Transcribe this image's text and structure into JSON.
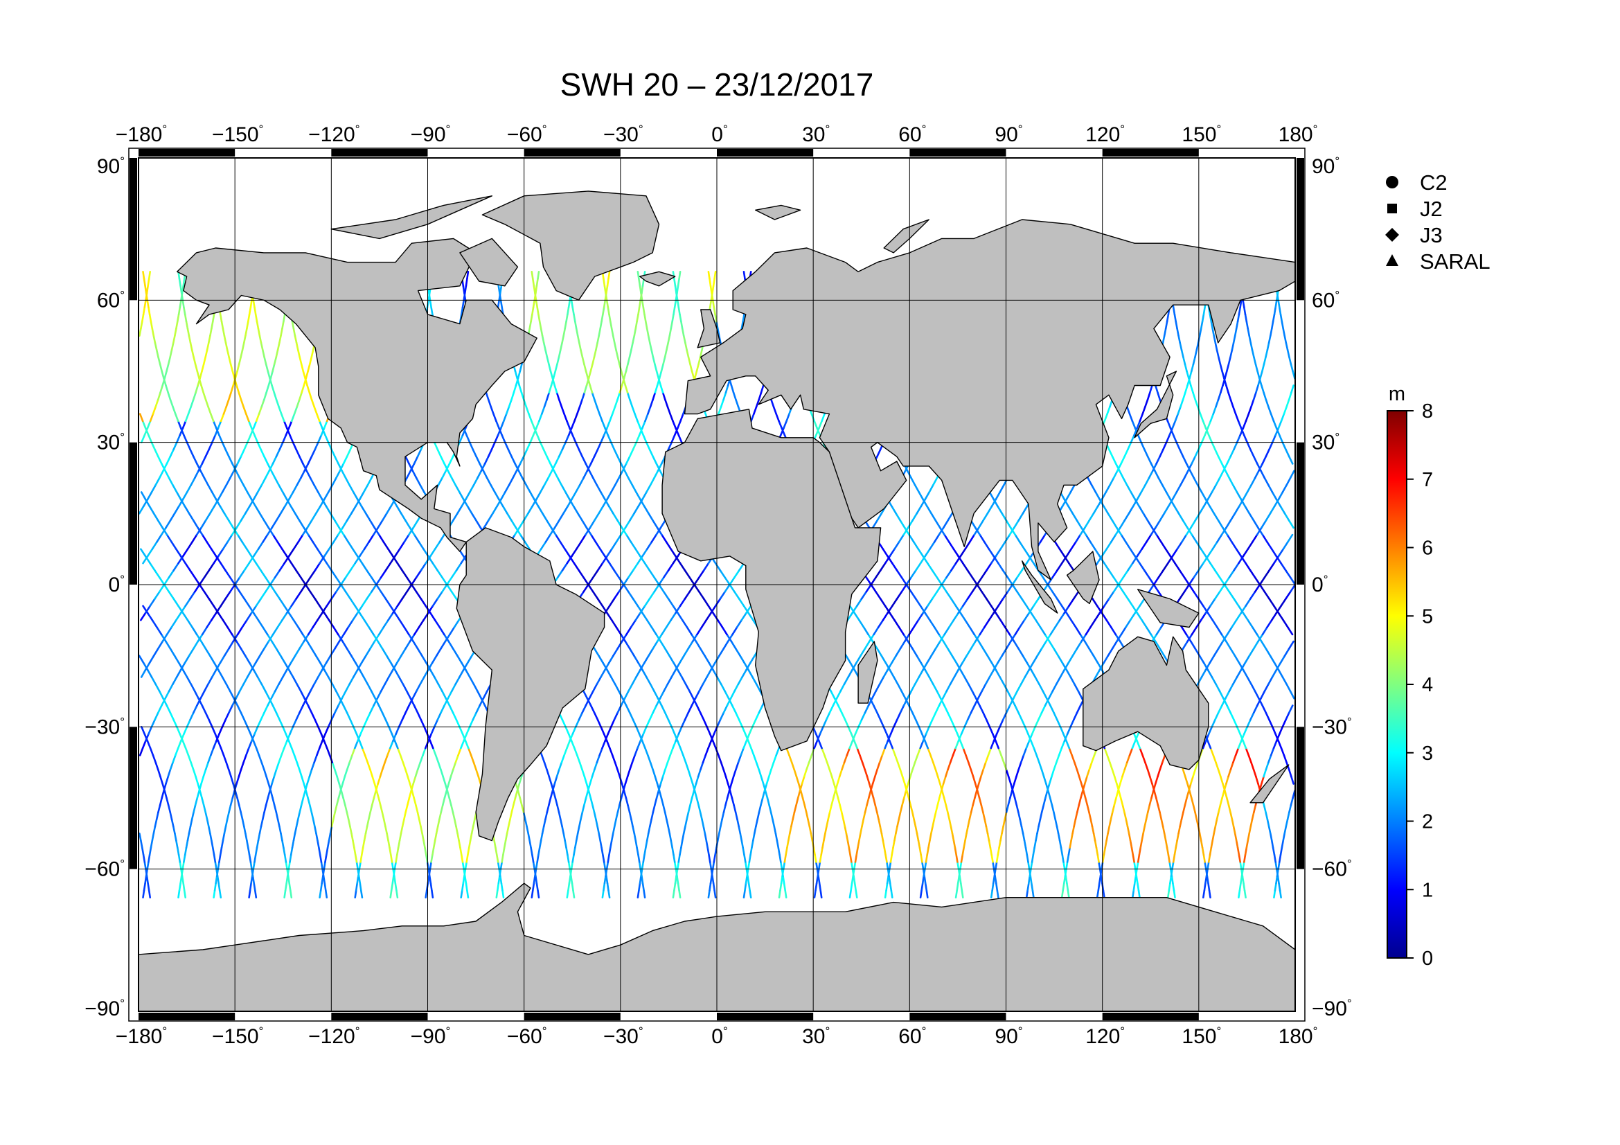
{
  "map": {
    "title": "SWH 20 – 23/12/2017",
    "projection": "equirectangular",
    "lon_range": [
      -180,
      180
    ],
    "lat_range": [
      -90,
      90
    ],
    "lon_ticks": [
      {
        "value": -180,
        "label": "−180"
      },
      {
        "value": -150,
        "label": "−150"
      },
      {
        "value": -120,
        "label": "−120"
      },
      {
        "value": -90,
        "label": "−90"
      },
      {
        "value": -60,
        "label": "−60"
      },
      {
        "value": -30,
        "label": "−30"
      },
      {
        "value": 0,
        "label": "0"
      },
      {
        "value": 30,
        "label": "30"
      },
      {
        "value": 60,
        "label": "60"
      },
      {
        "value": 90,
        "label": "90"
      },
      {
        "value": 120,
        "label": "120"
      },
      {
        "value": 150,
        "label": "150"
      },
      {
        "value": 180,
        "label": "180"
      }
    ],
    "lat_ticks": [
      {
        "value": 90,
        "label": "90"
      },
      {
        "value": 60,
        "label": "60"
      },
      {
        "value": 30,
        "label": "30"
      },
      {
        "value": 0,
        "label": "0"
      },
      {
        "value": -30,
        "label": "−30"
      },
      {
        "value": -60,
        "label": "−60"
      },
      {
        "value": -90,
        "label": "−90"
      }
    ],
    "degree_symbol": "°",
    "grid": true,
    "land_color": "#bfbfbf",
    "ocean_color": "#ffffff"
  },
  "legend": {
    "items": [
      {
        "label": "C2",
        "marker": "circle"
      },
      {
        "label": "J2",
        "marker": "square"
      },
      {
        "label": "J3",
        "marker": "diamond"
      },
      {
        "label": "SARAL",
        "marker": "triangle"
      }
    ]
  },
  "colorbar": {
    "unit": "m",
    "min": 0,
    "max": 8,
    "ticks": [
      {
        "value": 0,
        "label": "0"
      },
      {
        "value": 1,
        "label": "1"
      },
      {
        "value": 2,
        "label": "2"
      },
      {
        "value": 3,
        "label": "3"
      },
      {
        "value": 4,
        "label": "4"
      },
      {
        "value": 5,
        "label": "5"
      },
      {
        "value": 6,
        "label": "6"
      },
      {
        "value": 7,
        "label": "7"
      },
      {
        "value": 8,
        "label": "8"
      }
    ],
    "colors": [
      "#00008f",
      "#0000ff",
      "#0080ff",
      "#00ffff",
      "#80ff80",
      "#ffff00",
      "#ff8000",
      "#ff0000",
      "#800000"
    ]
  },
  "tracks": {
    "lat_limit_north": 66,
    "lat_limit_south": -66,
    "swh_regions": [
      {
        "lon": [
          -180,
          180
        ],
        "lat": [
          -10,
          10
        ],
        "swh": 1.6
      },
      {
        "lon": [
          -180,
          180
        ],
        "lat": [
          10,
          35
        ],
        "swh": 2.2
      },
      {
        "lon": [
          -180,
          -120
        ],
        "lat": [
          35,
          66
        ],
        "swh": 4.5
      },
      {
        "lon": [
          -60,
          0
        ],
        "lat": [
          40,
          66
        ],
        "swh": 4.0
      },
      {
        "lon": [
          0,
          120
        ],
        "lat": [
          -35,
          -10
        ],
        "swh": 2.2
      },
      {
        "lon": [
          -120,
          -60
        ],
        "lat": [
          -60,
          -35
        ],
        "swh": 4.5
      },
      {
        "lon": [
          20,
          90
        ],
        "lat": [
          -60,
          -35
        ],
        "swh": 5.5
      },
      {
        "lon": [
          110,
          170
        ],
        "lat": [
          -60,
          -35
        ],
        "swh": 5.8
      },
      {
        "lon": [
          -180,
          180
        ],
        "lat": [
          -66,
          -58
        ],
        "swh": 2.5
      }
    ]
  }
}
